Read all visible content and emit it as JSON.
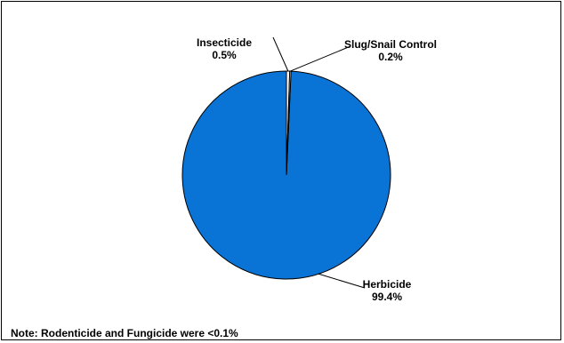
{
  "chart_data": {
    "type": "pie",
    "categories": [
      "Herbicide",
      "Insecticide",
      "Slug/Snail Control"
    ],
    "values": [
      99.4,
      0.5,
      0.2
    ],
    "value_labels": [
      "99.4%",
      "0.5%",
      "0.2%"
    ],
    "colors": [
      "#0A74D6",
      "#FFFFFF",
      "#FFFFFF"
    ],
    "start_angle_deg": 0,
    "direction": "counterclockwise",
    "legend": "none",
    "note": "Note: Rodenticide and Fungicide were <0.1%"
  }
}
